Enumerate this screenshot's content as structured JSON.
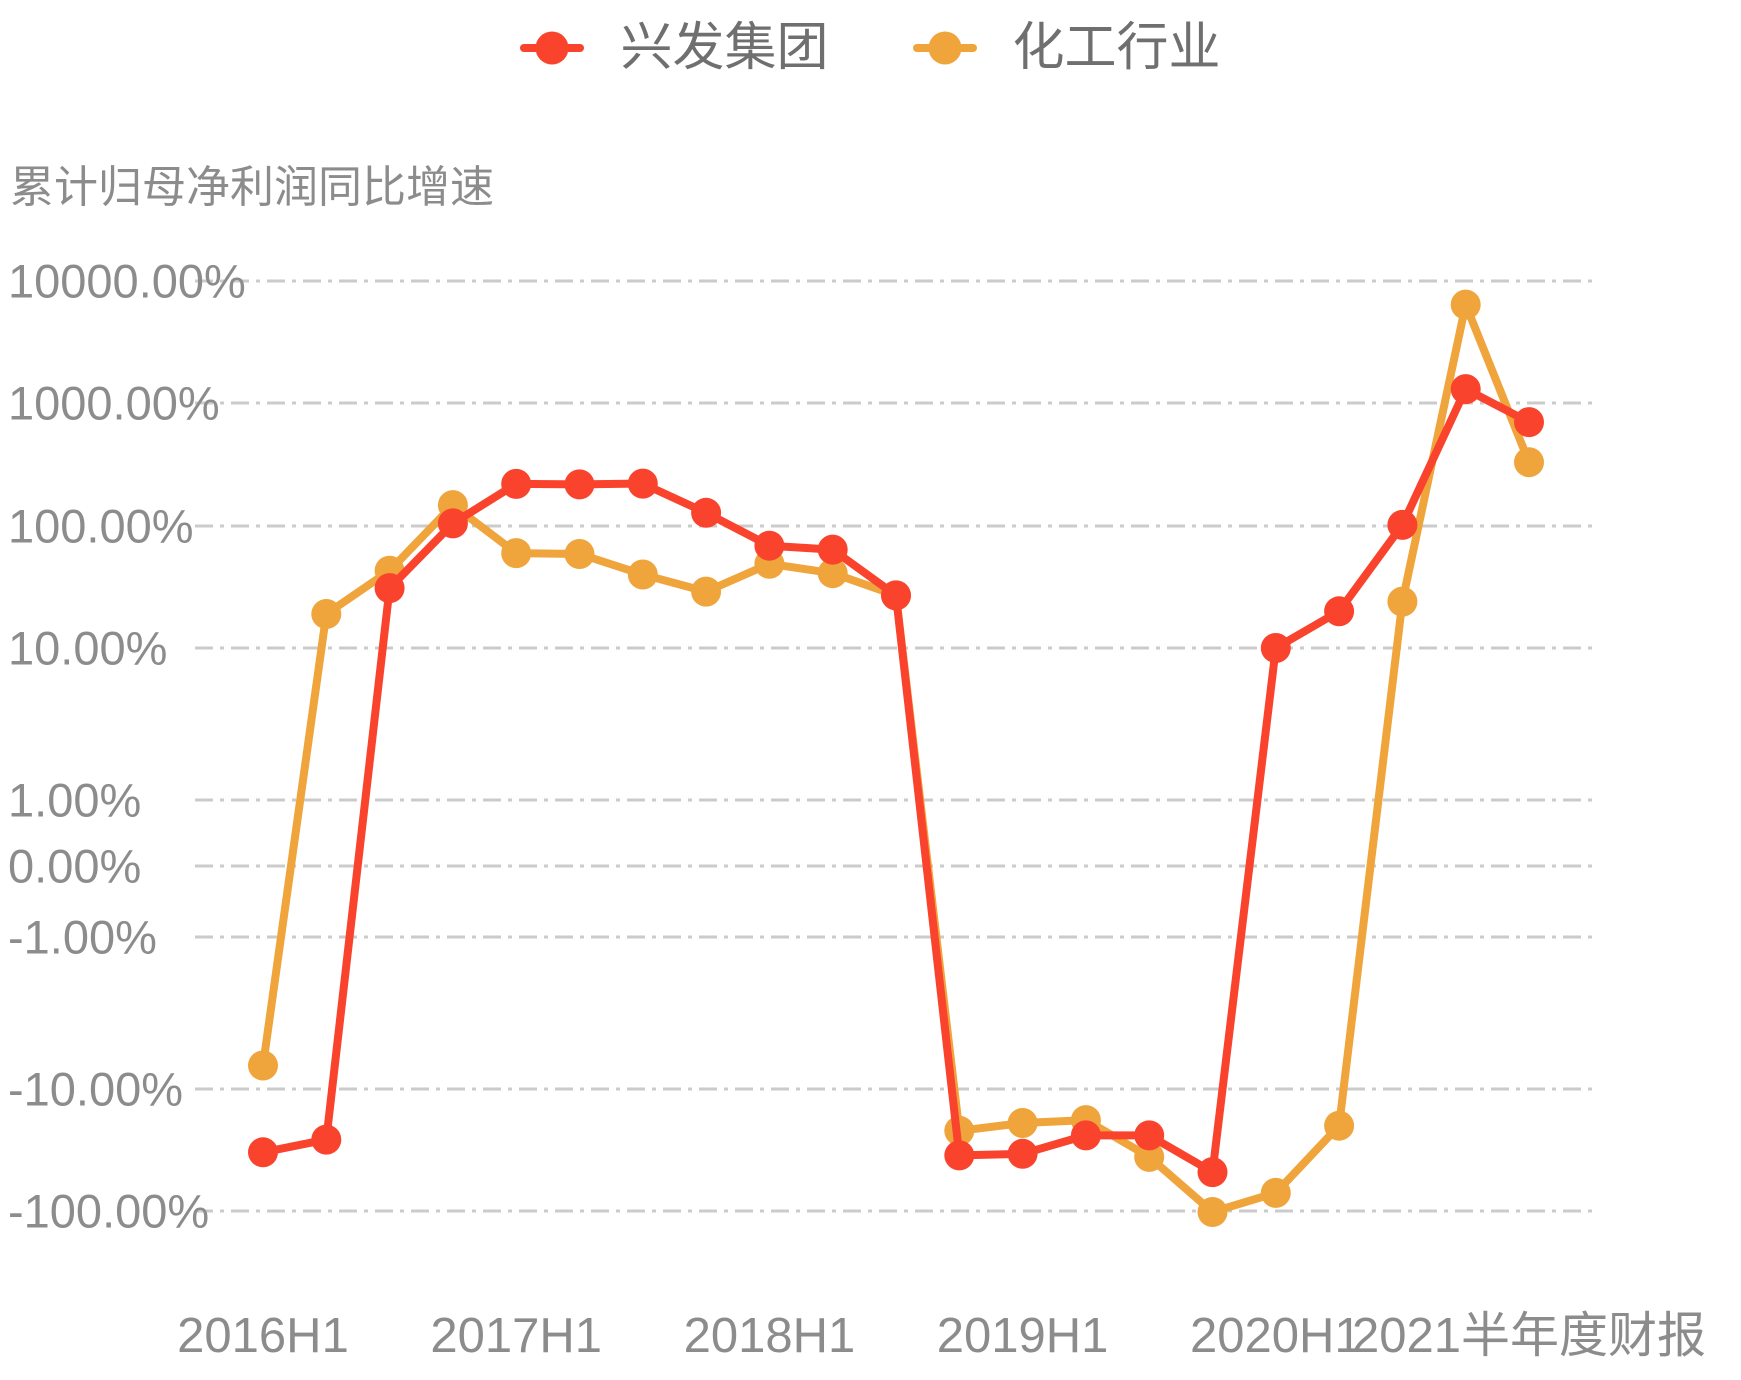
{
  "title": "累计归母净利润同比增速",
  "chart_data": {
    "type": "line",
    "title": "累计归母净利润同比增速",
    "unit": "%",
    "grid": true,
    "grid_style": "dash-dot",
    "legend_position": "top",
    "n_points": 21,
    "x_tick_labels": [
      {
        "index": 0,
        "label": "2016H1"
      },
      {
        "index": 4,
        "label": "2017H1"
      },
      {
        "index": 8,
        "label": "2018H1"
      },
      {
        "index": 12,
        "label": "2019H1"
      },
      {
        "index": 16,
        "label": "2020H1"
      },
      {
        "index": 20,
        "label": "2021半年度财报"
      }
    ],
    "y_axis": {
      "scale": "symlog",
      "unit": "%",
      "tick_labels": [
        "10000.00%",
        "1000.00%",
        "100.00%",
        "10.00%",
        "1.00%",
        "0.00%",
        "-1.00%",
        "-10.00%",
        "-100.00%"
      ],
      "tick_values": [
        10000,
        1000,
        100,
        10,
        1,
        0,
        -1,
        -10,
        -100
      ]
    },
    "series": [
      {
        "name": "兴发集团",
        "color": "#F9432C",
        "values": [
          -33,
          -26,
          31,
          105,
          220,
          218,
          221,
          128,
          69,
          64,
          27,
          -35,
          -34,
          -24,
          -24,
          -48,
          10,
          20,
          102,
          1300,
          700
        ]
      },
      {
        "name": "化工行业",
        "color": "#F0A43C",
        "values": [
          -7,
          19,
          43,
          148,
          60,
          59,
          40,
          29,
          49,
          41,
          27,
          -22,
          -19,
          -18,
          -36,
          -102,
          -71,
          -20,
          24,
          6400,
          330
        ]
      }
    ]
  }
}
